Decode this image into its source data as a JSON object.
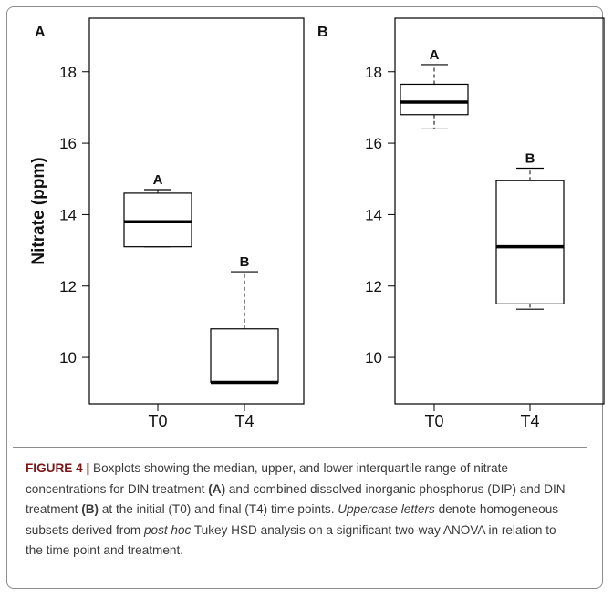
{
  "chart_data": [
    {
      "type": "boxplot",
      "panel_label": "A",
      "ylabel": "Nitrate (ppm)",
      "ylim": [
        8.7,
        19.5
      ],
      "yticks": [
        10,
        12,
        14,
        16,
        18
      ],
      "categories": [
        "T0",
        "T4"
      ],
      "boxes": [
        {
          "category": "T0",
          "whisker_low": 13.1,
          "q1": 13.1,
          "median": 13.8,
          "q3": 14.6,
          "whisker_high": 14.7,
          "letter": "A"
        },
        {
          "category": "T4",
          "whisker_low": 9.3,
          "q1": 9.3,
          "median": 9.3,
          "q3": 10.8,
          "whisker_high": 12.4,
          "letter": "B"
        }
      ]
    },
    {
      "type": "boxplot",
      "panel_label": "B",
      "ylabel": "",
      "ylim": [
        8.7,
        19.5
      ],
      "yticks": [
        10,
        12,
        14,
        16,
        18
      ],
      "categories": [
        "T0",
        "T4"
      ],
      "boxes": [
        {
          "category": "T0",
          "whisker_low": 16.4,
          "q1": 16.8,
          "median": 17.15,
          "q3": 17.65,
          "whisker_high": 18.2,
          "letter": "A"
        },
        {
          "category": "T4",
          "whisker_low": 11.35,
          "q1": 11.5,
          "median": 13.1,
          "q3": 14.95,
          "whisker_high": 15.3,
          "letter": "B"
        }
      ]
    }
  ],
  "caption": {
    "label": "FIGURE 4 |",
    "t1": " Boxplots showing the median, upper, and lower interquartile range of nitrate concentrations for DIN treatment ",
    "a": "(A)",
    "t2": " and combined dissolved inorganic phosphorus (DIP) and DIN treatment ",
    "b": "(B)",
    "t3": " at the initial (T0) and final (T4) time points. ",
    "i1": "Uppercase letters",
    "t4": " denote homogeneous subsets derived from ",
    "i2": "post hoc",
    "t5": " Tukey HSD analysis on a significant two-way ANOVA in relation to the time point and treatment."
  }
}
